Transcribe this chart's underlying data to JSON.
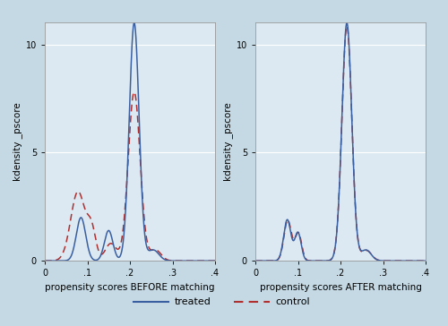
{
  "fig_bg_color": "#c5d9e4",
  "plot_bg_color": "#dce9f2",
  "xlim": [
    0,
    4
  ],
  "ylim": [
    0,
    11
  ],
  "yticks": [
    0,
    5,
    10
  ],
  "xticks": [
    0,
    1,
    2,
    3,
    4
  ],
  "xticklabels": [
    "0",
    ".1",
    ".2",
    ".3",
    ".4"
  ],
  "ylabel": "kdensity _pscore",
  "xlabel_before": "propensity scores BEFORE matching",
  "xlabel_after": "propensity scores AFTER matching",
  "treated_color": "#3a5fa0",
  "control_color": "#b03030",
  "grid_color": "#ffffff",
  "grid_linewidth": 0.8,
  "line_linewidth": 1.1,
  "dash_pattern": [
    5,
    3,
    5,
    3
  ]
}
